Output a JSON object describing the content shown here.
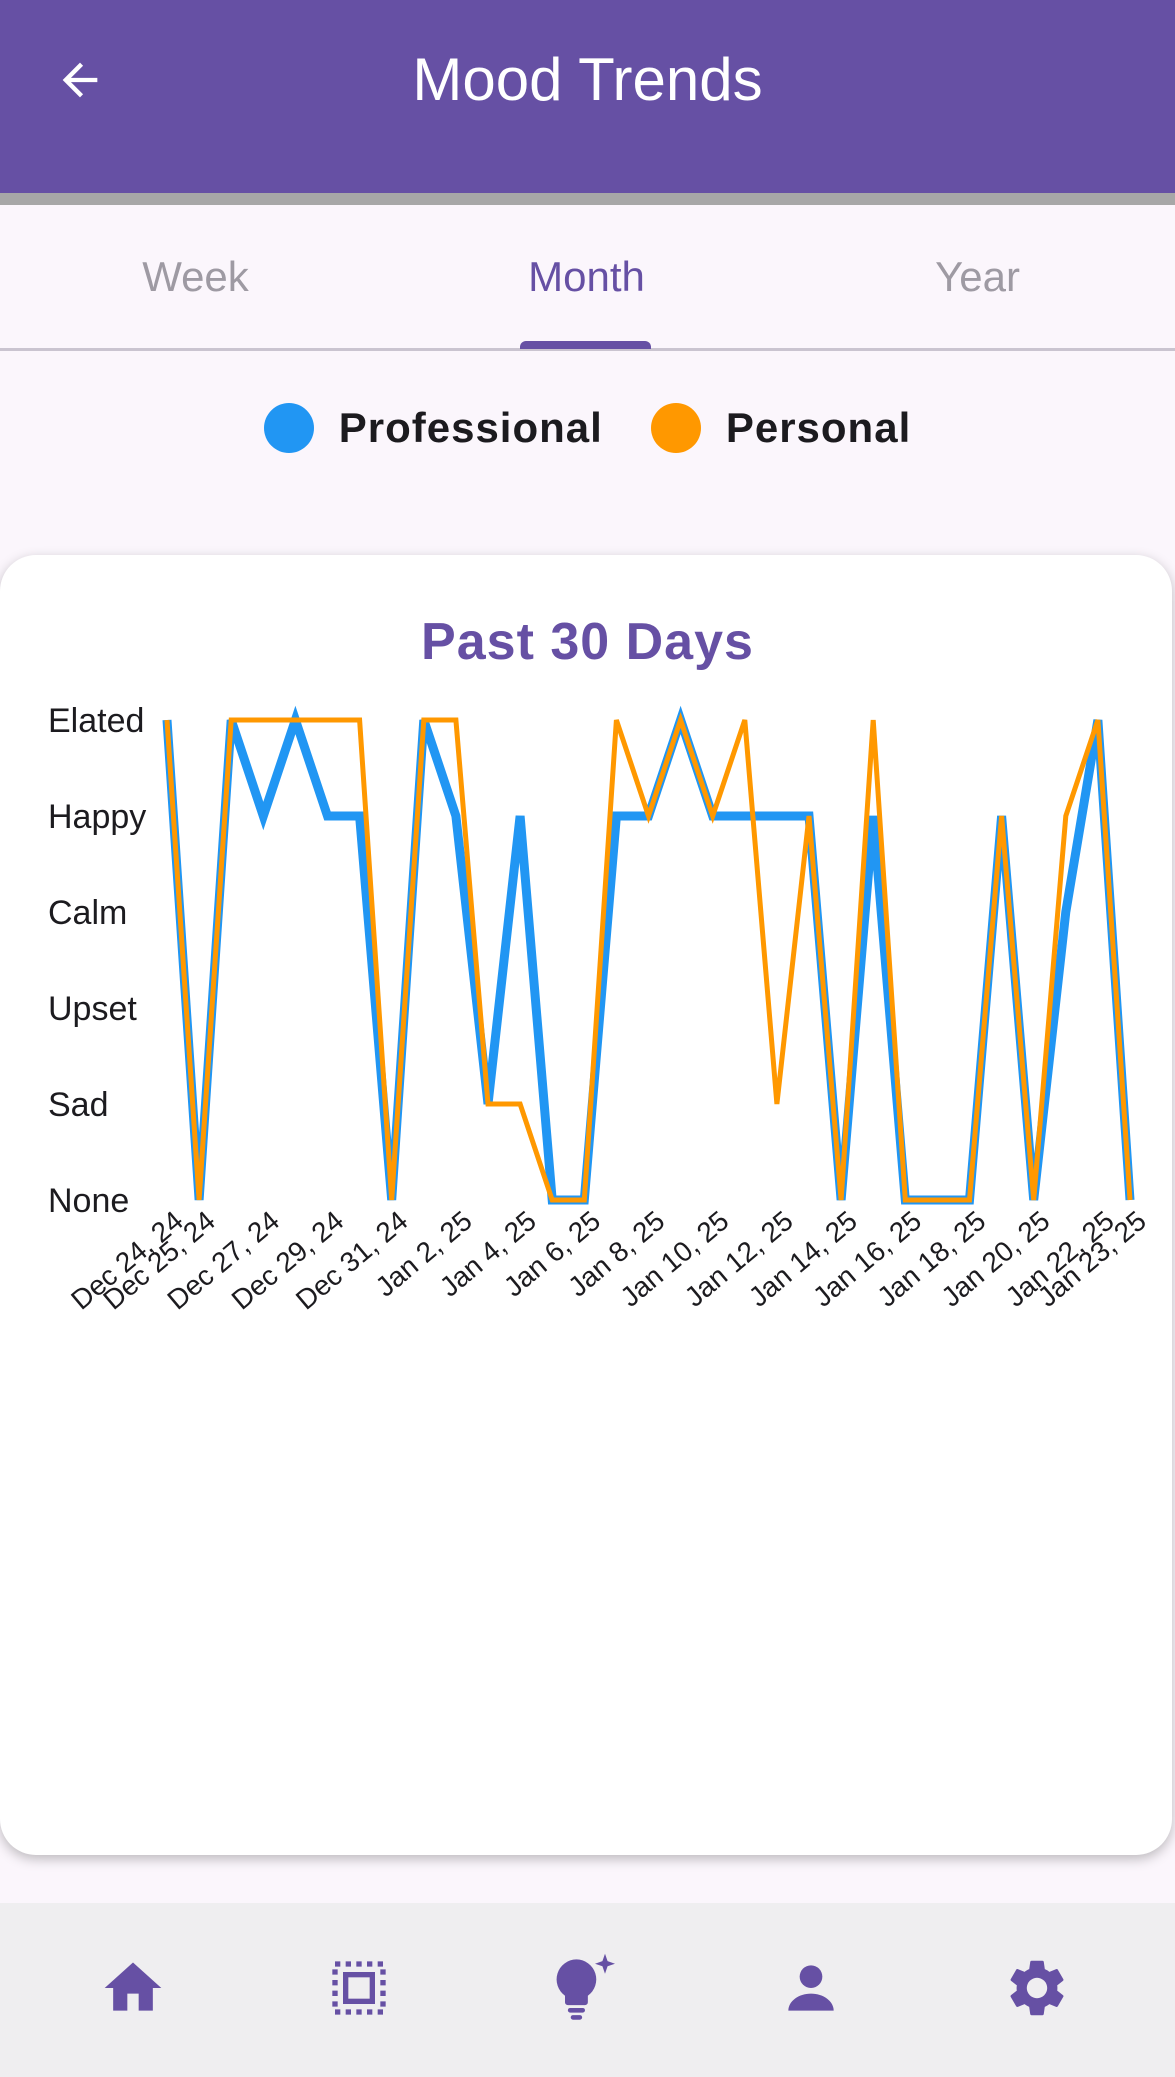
{
  "app_bar": {
    "title": "Mood Trends",
    "back_icon": "arrow-back-icon"
  },
  "tabs": [
    {
      "label": "Week",
      "active": false
    },
    {
      "label": "Month",
      "active": true
    },
    {
      "label": "Year",
      "active": false
    }
  ],
  "legend": [
    {
      "label": "Professional",
      "color": "#2196f3"
    },
    {
      "label": "Personal",
      "color": "#ff9800"
    }
  ],
  "chart_data": {
    "type": "line",
    "title": "Past 30 Days",
    "y_categories": [
      "None",
      "Sad",
      "Upset",
      "Calm",
      "Happy",
      "Elated"
    ],
    "x_tick_labels": [
      "Dec 24, 24",
      "Dec 25, 24",
      "Dec 27, 24",
      "Dec 29, 24",
      "Dec 31, 24",
      "Jan 2, 25",
      "Jan 4, 25",
      "Jan 6, 25",
      "Jan 8, 25",
      "Jan 10, 25",
      "Jan 12, 25",
      "Jan 14, 25",
      "Jan 16, 25",
      "Jan 18, 25",
      "Jan 20, 25",
      "Jan 22, 25",
      "Jan 23, 25"
    ],
    "x": [
      "Dec 24, 24",
      "Dec 25, 24",
      "Dec 26, 24",
      "Dec 27, 24",
      "Dec 28, 24",
      "Dec 29, 24",
      "Dec 30, 24",
      "Dec 31, 24",
      "Jan 1, 25",
      "Jan 2, 25",
      "Jan 3, 25",
      "Jan 4, 25",
      "Jan 5, 25",
      "Jan 6, 25",
      "Jan 7, 25",
      "Jan 8, 25",
      "Jan 9, 25",
      "Jan 10, 25",
      "Jan 11, 25",
      "Jan 12, 25",
      "Jan 13, 25",
      "Jan 14, 25",
      "Jan 15, 25",
      "Jan 16, 25",
      "Jan 17, 25",
      "Jan 18, 25",
      "Jan 19, 25",
      "Jan 20, 25",
      "Jan 21, 25",
      "Jan 22, 25",
      "Jan 23, 25"
    ],
    "series": [
      {
        "name": "Professional",
        "color": "#2196f3",
        "values": [
          "Elated",
          "None",
          "Elated",
          "Happy",
          "Elated",
          "Happy",
          "Happy",
          "None",
          "Elated",
          "Happy",
          "Sad",
          "Happy",
          "None",
          "None",
          "Happy",
          "Happy",
          "Elated",
          "Happy",
          "Happy",
          "Happy",
          "Happy",
          "None",
          "Happy",
          "None",
          "None",
          "None",
          "Happy",
          "None",
          "Calm",
          "Elated",
          "None"
        ]
      },
      {
        "name": "Personal",
        "color": "#ff9800",
        "values": [
          "Elated",
          "None",
          "Elated",
          "Elated",
          "Elated",
          "Elated",
          "Elated",
          "None",
          "Elated",
          "Elated",
          "Sad",
          "Sad",
          "None",
          "None",
          "Elated",
          "Happy",
          "Elated",
          "Happy",
          "Elated",
          "Sad",
          "Happy",
          "None",
          "Elated",
          "None",
          "None",
          "None",
          "Happy",
          "None",
          "Happy",
          "Elated",
          "None"
        ]
      }
    ]
  },
  "bottom_nav": [
    {
      "icon": "home-icon"
    },
    {
      "icon": "dashboard-icon"
    },
    {
      "icon": "lightbulb-sparkle-icon"
    },
    {
      "icon": "person-icon"
    },
    {
      "icon": "gear-icon"
    }
  ]
}
